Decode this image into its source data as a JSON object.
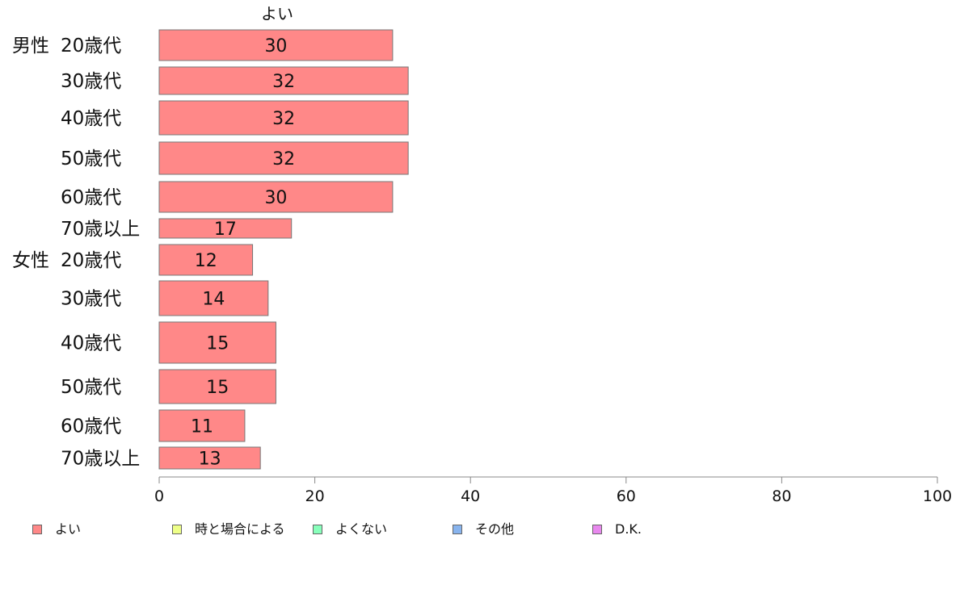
{
  "chart_data": {
    "type": "bar",
    "orientation": "horizontal",
    "title": "よい",
    "group_labels": [
      "男性",
      "女性"
    ],
    "categories": [
      "20歳代",
      "30歳代",
      "40歳代",
      "50歳代",
      "60歳代",
      "70歳以上",
      "20歳代",
      "30歳代",
      "40歳代",
      "50歳代",
      "60歳代",
      "70歳以上"
    ],
    "category_groups": [
      0,
      0,
      0,
      0,
      0,
      0,
      1,
      1,
      1,
      1,
      1,
      1
    ],
    "values": [
      30,
      32,
      32,
      32,
      30,
      17,
      12,
      14,
      15,
      15,
      11,
      13
    ],
    "x_ticks": [
      "0",
      "20",
      "40",
      "60",
      "80",
      "100"
    ],
    "xlim": [
      0,
      100
    ],
    "grid": false,
    "legend_position": "bottom",
    "legend": [
      {
        "label": "よい",
        "color": "#ff8888"
      },
      {
        "label": "時と場合による",
        "color": "#eeff88"
      },
      {
        "label": "よくない",
        "color": "#88ffbb"
      },
      {
        "label": "その他",
        "color": "#88b4ee"
      },
      {
        "label": "D.K.",
        "color": "#e888ee"
      }
    ],
    "bar_color": "#ff8888"
  }
}
